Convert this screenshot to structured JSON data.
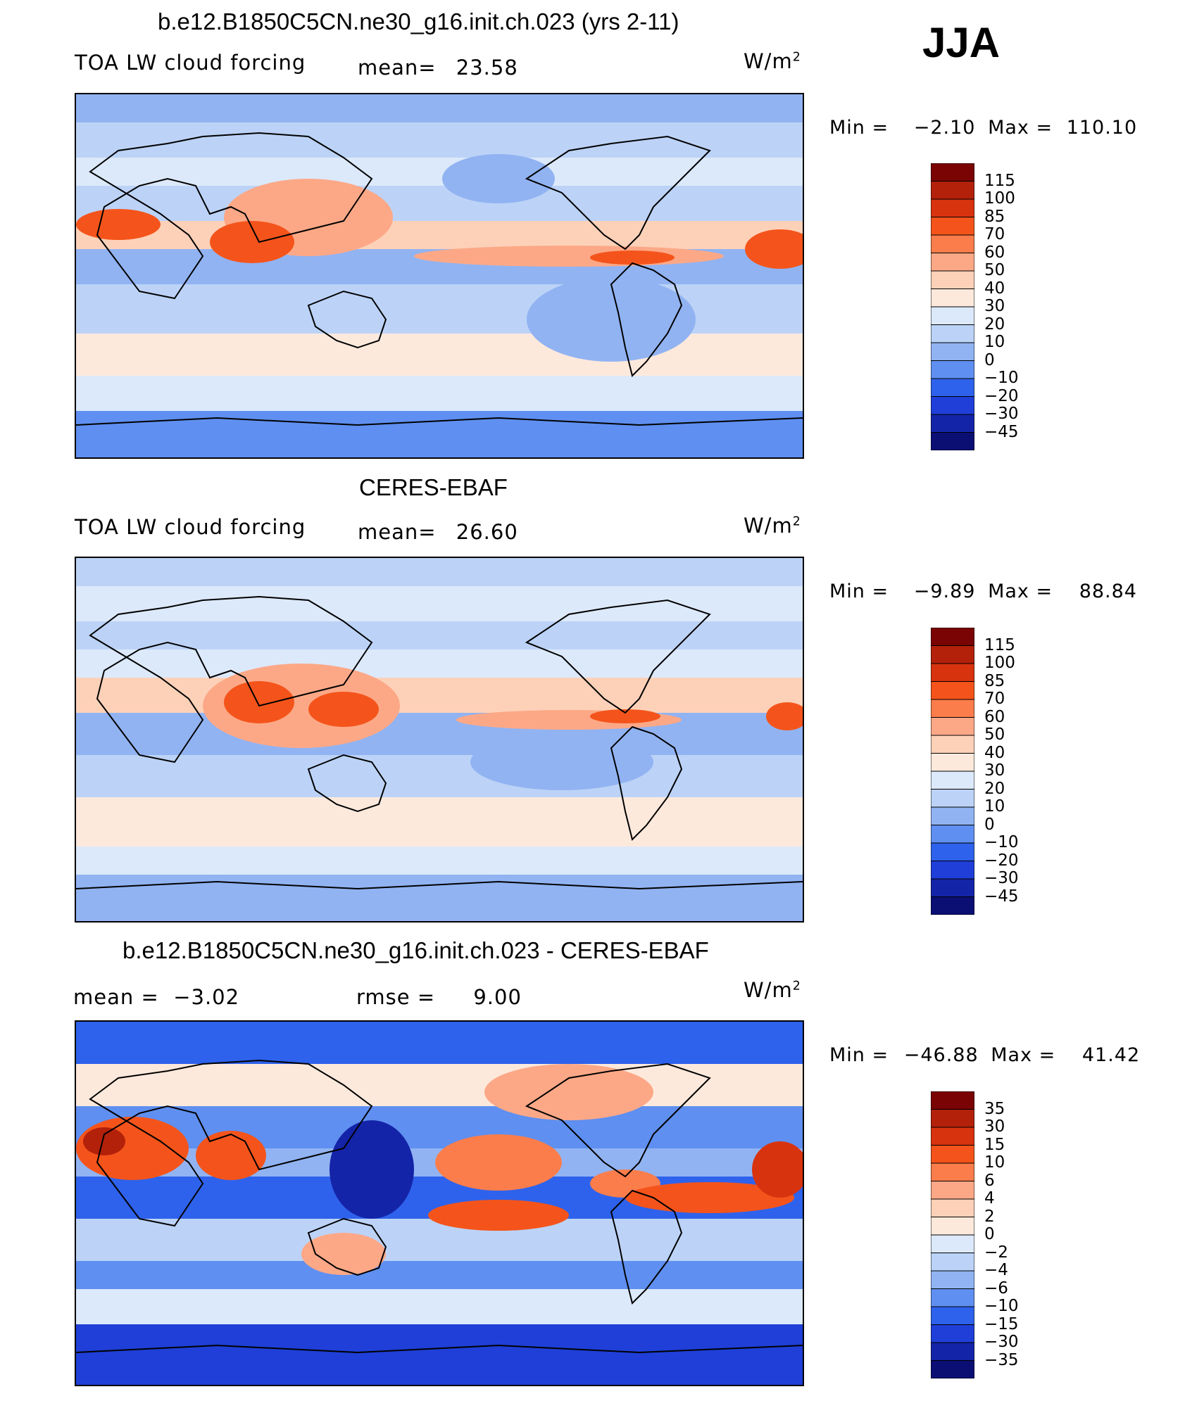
{
  "season": "JJA",
  "units_base": "W/m",
  "units_exp": "2",
  "panels": [
    {
      "title": "b.e12.B1850C5CN.ne30_g16.init.ch.023 (yrs 2-11)",
      "left_label": "TOA LW cloud forcing",
      "stat_label": "mean=",
      "stat_value": "23.58",
      "min_label": "Min =",
      "min_value": "−2.10",
      "max_label": "Max =",
      "max_value": "110.10",
      "colorbar_labels": [
        "115",
        "100",
        "85",
        "70",
        "60",
        "50",
        "40",
        "30",
        "20",
        "10",
        "0",
        "−10",
        "−20",
        "−30",
        "−45"
      ]
    },
    {
      "title": "CERES-EBAF",
      "left_label": "TOA LW cloud forcing",
      "stat_label": "mean=",
      "stat_value": "26.60",
      "min_label": "Min =",
      "min_value": "−9.89",
      "max_label": "Max =",
      "max_value": "88.84",
      "colorbar_labels": [
        "115",
        "100",
        "85",
        "70",
        "60",
        "50",
        "40",
        "30",
        "20",
        "10",
        "0",
        "−10",
        "−20",
        "−30",
        "−45"
      ]
    },
    {
      "title": "b.e12.B1850C5CN.ne30_g16.init.ch.023 - CERES-EBAF",
      "left_label": "mean =  −3.02",
      "stat_label": "rmse =",
      "stat_value": "9.00",
      "min_label": "Min =",
      "min_value": "−46.88",
      "max_label": "Max =",
      "max_value": "41.42",
      "colorbar_labels": [
        "35",
        "30",
        "15",
        "10",
        "6",
        "4",
        "2",
        "0",
        "−2",
        "−4",
        "−6",
        "−10",
        "−15",
        "−30",
        "−35"
      ]
    }
  ],
  "colors": {
    "levels": [
      "#7a0403",
      "#b3210b",
      "#d8330f",
      "#f4541b",
      "#fb7d4b",
      "#fca887",
      "#fdd1b8",
      "#fde9dc",
      "#dce9fa",
      "#bcd3f7",
      "#91b3f2",
      "#5f8ff0",
      "#2e62ec",
      "#1f3fd8",
      "#1424a8",
      "#0b0f74"
    ],
    "land_outline": "#000000"
  },
  "chart_data": [
    {
      "type": "heatmap",
      "title": "b.e12.B1850C5CN.ne30_g16.init.ch.023 (yrs 2-11)",
      "subtitle": "TOA LW cloud forcing",
      "season": "JJA",
      "units": "W/m2",
      "mean": 23.58,
      "min": -2.1,
      "max": 110.1,
      "levels": [
        -45,
        -30,
        -20,
        -10,
        0,
        10,
        20,
        30,
        40,
        50,
        60,
        70,
        85,
        100,
        115
      ]
    },
    {
      "type": "heatmap",
      "title": "CERES-EBAF",
      "subtitle": "TOA LW cloud forcing",
      "season": "JJA",
      "units": "W/m2",
      "mean": 26.6,
      "min": -9.89,
      "max": 88.84,
      "levels": [
        -45,
        -30,
        -20,
        -10,
        0,
        10,
        20,
        30,
        40,
        50,
        60,
        70,
        85,
        100,
        115
      ]
    },
    {
      "type": "heatmap",
      "title": "b.e12.B1850C5CN.ne30_g16.init.ch.023 - CERES-EBAF",
      "season": "JJA",
      "units": "W/m2",
      "mean": -3.02,
      "rmse": 9.0,
      "min": -46.88,
      "max": 41.42,
      "levels": [
        -35,
        -30,
        -15,
        -10,
        -6,
        -4,
        -2,
        0,
        2,
        4,
        6,
        10,
        15,
        30,
        35
      ]
    }
  ]
}
